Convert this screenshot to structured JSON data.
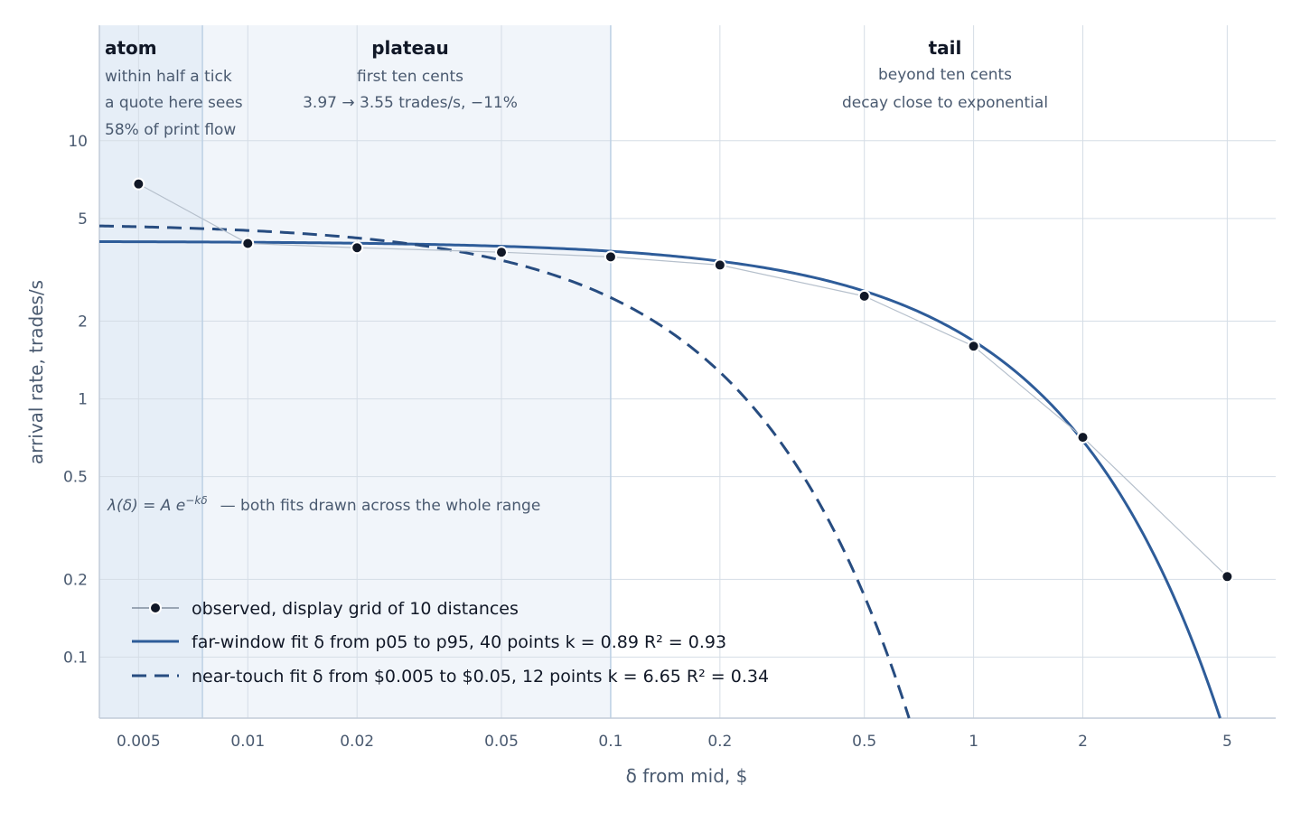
{
  "chart_data": {
    "type": "line",
    "xscale": "log",
    "yscale": "log",
    "xlim": [
      0.0039,
      6.8
    ],
    "ylim": [
      0.058,
      28
    ],
    "xlabel": "δ from mid, $",
    "ylabel": "arrival rate, trades/s",
    "x_ticks": [
      {
        "v": 0.005,
        "label": "0.005"
      },
      {
        "v": 0.01,
        "label": "0.01"
      },
      {
        "v": 0.02,
        "label": "0.02"
      },
      {
        "v": 0.05,
        "label": "0.05"
      },
      {
        "v": 0.1,
        "label": "0.1"
      },
      {
        "v": 0.2,
        "label": "0.2"
      },
      {
        "v": 0.5,
        "label": "0.5"
      },
      {
        "v": 1,
        "label": "1"
      },
      {
        "v": 2,
        "label": "2"
      },
      {
        "v": 5,
        "label": "5"
      }
    ],
    "y_ticks": [
      {
        "v": 0.1,
        "label": "0.1"
      },
      {
        "v": 0.2,
        "label": "0.2"
      },
      {
        "v": 0.5,
        "label": "0.5"
      },
      {
        "v": 1,
        "label": "1"
      },
      {
        "v": 2,
        "label": "2"
      },
      {
        "v": 5,
        "label": "5"
      },
      {
        "v": 10,
        "label": "10"
      }
    ],
    "observed": {
      "x": [
        0.005,
        0.01,
        0.02,
        0.05,
        0.1,
        0.2,
        0.5,
        1,
        2,
        5
      ],
      "y": [
        6.8,
        4.0,
        3.85,
        3.7,
        3.55,
        3.3,
        2.5,
        1.6,
        0.71,
        0.205
      ]
    },
    "fits": {
      "far": {
        "A": 4.08,
        "k": 0.89
      },
      "near": {
        "A": 4.8,
        "k": 6.65
      }
    },
    "regions": [
      {
        "from": 0.0039,
        "to": 0.0075,
        "title": "atom",
        "notes": [
          "within half a tick",
          "a quote here sees",
          "58% of print flow"
        ]
      },
      {
        "from": 0.0075,
        "to": 0.1,
        "title": "plateau",
        "notes": [
          "first ten cents",
          "3.97 → 3.55 trades/s, −11%"
        ]
      },
      {
        "from": 0.1,
        "to": 6.8,
        "title": "tail",
        "notes": [
          "beyond ten cents",
          "decay close to exponential"
        ]
      }
    ],
    "formula": {
      "lhs": "λ(δ) = A e",
      "exponent": "−kδ",
      "rest": "—   both fits drawn across the whole range"
    },
    "legend": [
      {
        "style": "observed",
        "label": "observed, display grid of 10 distances"
      },
      {
        "style": "far",
        "label": "far-window fit   δ from p05 to p95, 40 points    k = 0.89    R² = 0.93"
      },
      {
        "style": "near",
        "label": "near-touch fit   δ from $0.005 to $0.05, 12 points    k = 6.65    R² = 0.34"
      }
    ],
    "colors": {
      "fit_line": "#2e5c99",
      "near_line": "#274c80",
      "point": "#111827",
      "connector": "#b6c0cc",
      "grid": "#d5dde6",
      "atom_shade": "#e6eef7",
      "plateau_shade": "#f1f5fa",
      "boundary": "#bcd0e4"
    }
  }
}
